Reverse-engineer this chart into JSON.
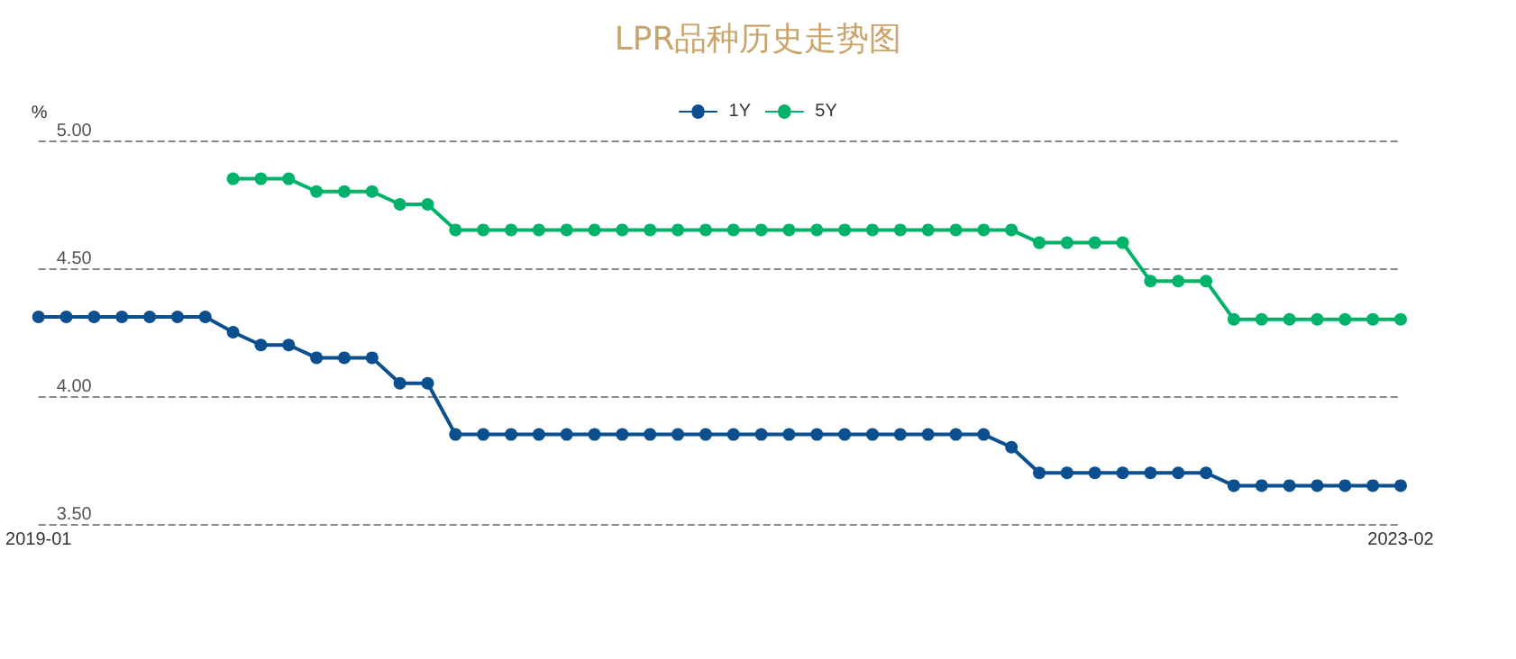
{
  "chart_data": {
    "type": "line",
    "title": "LPR品种历史走势图",
    "ylabel": "%",
    "categories": [
      "2019-01",
      null,
      null,
      null,
      null,
      null,
      null,
      null,
      null,
      null,
      null,
      null,
      null,
      null,
      null,
      null,
      null,
      null,
      null,
      null,
      null,
      null,
      null,
      null,
      null,
      null,
      null,
      null,
      null,
      null,
      null,
      null,
      null,
      null,
      null,
      null,
      null,
      null,
      null,
      null,
      null,
      null,
      null,
      null,
      null,
      null,
      null,
      null,
      null,
      "2023-02"
    ],
    "series": [
      {
        "name": "1Y",
        "color": "#0b4f8f",
        "values": [
          4.31,
          4.31,
          4.31,
          4.31,
          4.31,
          4.31,
          4.31,
          4.25,
          4.2,
          4.2,
          4.15,
          4.15,
          4.15,
          4.05,
          4.05,
          3.85,
          3.85,
          3.85,
          3.85,
          3.85,
          3.85,
          3.85,
          3.85,
          3.85,
          3.85,
          3.85,
          3.85,
          3.85,
          3.85,
          3.85,
          3.85,
          3.85,
          3.85,
          3.85,
          3.85,
          3.8,
          3.7,
          3.7,
          3.7,
          3.7,
          3.7,
          3.7,
          3.7,
          3.65,
          3.65,
          3.65,
          3.65,
          3.65,
          3.65,
          3.65
        ]
      },
      {
        "name": "5Y",
        "color": "#00b26a",
        "values": [
          null,
          null,
          null,
          null,
          null,
          null,
          null,
          4.85,
          4.85,
          4.85,
          4.8,
          4.8,
          4.8,
          4.75,
          4.75,
          4.65,
          4.65,
          4.65,
          4.65,
          4.65,
          4.65,
          4.65,
          4.65,
          4.65,
          4.65,
          4.65,
          4.65,
          4.65,
          4.65,
          4.65,
          4.65,
          4.65,
          4.65,
          4.65,
          4.65,
          4.65,
          4.6,
          4.6,
          4.6,
          4.6,
          4.45,
          4.45,
          4.45,
          4.3,
          4.3,
          4.3,
          4.3,
          4.3,
          4.3,
          4.3
        ]
      }
    ],
    "ylim": [
      3.5,
      5.0
    ],
    "yticks": [
      {
        "value": 3.5,
        "label": "3.50"
      },
      {
        "value": 4.0,
        "label": "4.00"
      },
      {
        "value": 4.5,
        "label": "4.50"
      },
      {
        "value": 5.0,
        "label": "5.00"
      }
    ],
    "grid": "y",
    "legend": "top",
    "marker": "circle",
    "line_style": "solid"
  }
}
